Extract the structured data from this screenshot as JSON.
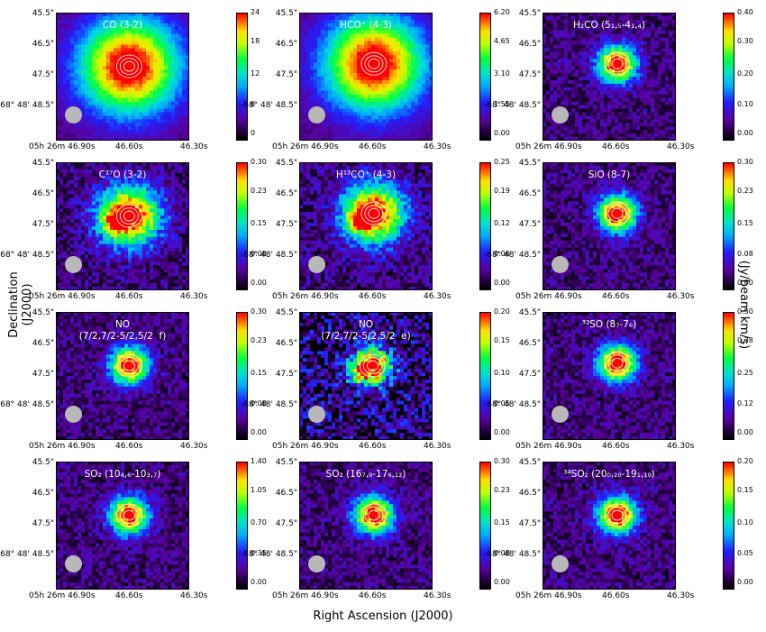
{
  "figure": {
    "xlabel": "Right Ascension (J2000)",
    "ylabel": "Declination (J2000)",
    "cbar_label": "(Jy/beam km/s)",
    "y_ticks": [
      "45.5\"",
      "46.5\"",
      "47.5\"",
      "-68° 48' 48.5\""
    ],
    "x_ticks": [
      "05h 26m 46.90s",
      "46.60s",
      "46.30s"
    ],
    "colors": {
      "bg_dark": "#2a0050",
      "contour": "#ffffff",
      "beam": "#b8b8b8"
    }
  },
  "chart_data": [
    {
      "type": "heatmap",
      "title": "CO (3-2)",
      "colorbar_ticks": [
        "24",
        "18",
        "12",
        "6",
        "0"
      ],
      "clim": [
        0,
        24
      ],
      "peak_rel": [
        0.55,
        0.42
      ],
      "extent": "wide"
    },
    {
      "type": "heatmap",
      "title": "HCO⁺ (4-3)",
      "colorbar_ticks": [
        "6.20",
        "4.65",
        "3.10",
        "1.55",
        "0.00"
      ],
      "clim": [
        0,
        6.2
      ],
      "peak_rel": [
        0.56,
        0.4
      ],
      "extent": "wide"
    },
    {
      "type": "heatmap",
      "title": "H₂CO (5₁,₅-4₁,₄)",
      "colorbar_ticks": [
        "0.40",
        "0.30",
        "0.20",
        "0.10",
        "0.00"
      ],
      "clim": [
        0,
        0.4
      ],
      "peak_rel": [
        0.56,
        0.4
      ],
      "extent": "compact"
    },
    {
      "type": "heatmap",
      "title": "C¹⁷O (3-2)",
      "colorbar_ticks": [
        "0.30",
        "0.23",
        "0.15",
        "0.08",
        "0.00"
      ],
      "clim": [
        0,
        0.3
      ],
      "peak_rel": [
        0.55,
        0.42
      ],
      "extent": "medium"
    },
    {
      "type": "heatmap",
      "title": "H¹³CO⁺ (4-3)",
      "colorbar_ticks": [
        "0.25",
        "0.19",
        "0.12",
        "0.06",
        "0.00"
      ],
      "clim": [
        0,
        0.25
      ],
      "peak_rel": [
        0.56,
        0.4
      ],
      "extent": "medium"
    },
    {
      "type": "heatmap",
      "title": "SiO (8-7)",
      "colorbar_ticks": [
        "0.30",
        "0.23",
        "0.15",
        "0.08",
        "0.00"
      ],
      "clim": [
        0,
        0.3
      ],
      "peak_rel": [
        0.56,
        0.4
      ],
      "extent": "compact"
    },
    {
      "type": "heatmap",
      "title": "NO\n(7/2,7/2-5/2,5/2  f)",
      "colorbar_ticks": [
        "0.30",
        "0.23",
        "0.15",
        "0.08",
        "0.00"
      ],
      "clim": [
        0,
        0.3
      ],
      "peak_rel": [
        0.55,
        0.42
      ],
      "extent": "compact"
    },
    {
      "type": "heatmap",
      "title": "NO\n(7/2,7/2-5/2,5/2  e)",
      "colorbar_ticks": [
        "0.20",
        "0.15",
        "0.10",
        "0.05",
        "0.00"
      ],
      "clim": [
        0,
        0.2
      ],
      "peak_rel": [
        0.55,
        0.42
      ],
      "extent": "noisy"
    },
    {
      "type": "heatmap",
      "title": "³³SO (8₇-7₆)",
      "colorbar_ticks": [
        "0.50",
        "0.38",
        "0.25",
        "0.12",
        "0.00"
      ],
      "clim": [
        0,
        0.5
      ],
      "peak_rel": [
        0.56,
        0.4
      ],
      "extent": "compact"
    },
    {
      "type": "heatmap",
      "title": "SO₂ (10₄,₆-10₃,₇)",
      "colorbar_ticks": [
        "1.40",
        "1.05",
        "0.70",
        "0.35",
        "0.00"
      ],
      "clim": [
        0,
        1.4
      ],
      "peak_rel": [
        0.55,
        0.42
      ],
      "extent": "compact"
    },
    {
      "type": "heatmap",
      "title": "SO₂ (16₇,₉-17₆,₁₂)",
      "colorbar_ticks": [
        "0.30",
        "0.23",
        "0.15",
        "0.08",
        "0.00"
      ],
      "clim": [
        0,
        0.3
      ],
      "peak_rel": [
        0.56,
        0.42
      ],
      "extent": "compact"
    },
    {
      "type": "heatmap",
      "title": "³⁴SO₂ (20₀,₂₀-19₁,₁₉)",
      "colorbar_ticks": [
        "0.20",
        "0.15",
        "0.10",
        "0.05",
        "0.00"
      ],
      "clim": [
        0,
        0.2
      ],
      "peak_rel": [
        0.56,
        0.42
      ],
      "extent": "compact"
    }
  ]
}
